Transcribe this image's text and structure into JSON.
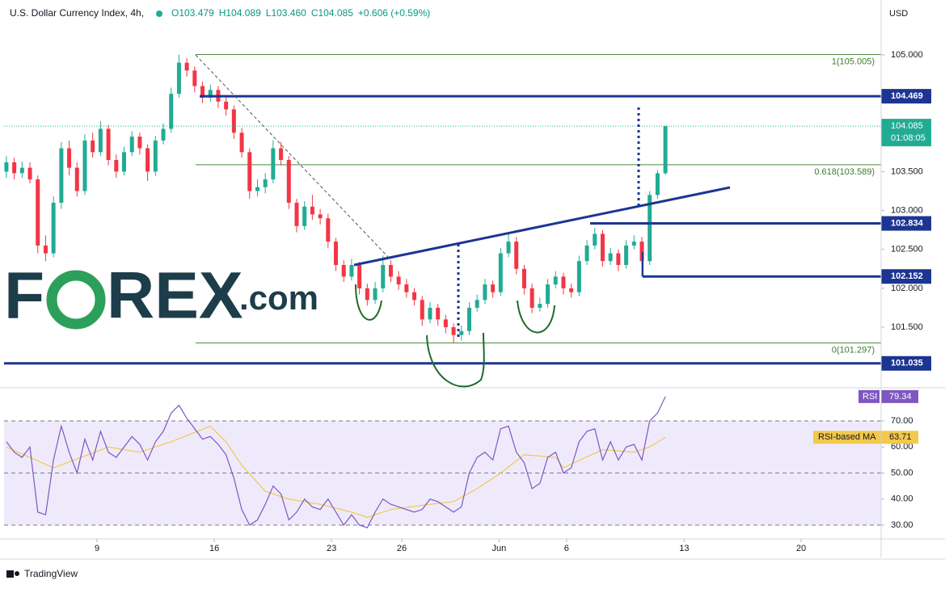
{
  "header": {
    "symbol": "U.S. Dollar Currency Index, 4h,",
    "ohlc": [
      "O103.479",
      "H104.089",
      "L103.460",
      "C104.085"
    ],
    "change": "+0.606 (+0.59%)",
    "currency": "USD",
    "countdown": "01:08:05"
  },
  "watermark": [
    "F",
    "REX",
    ".com"
  ],
  "footer": "TradingView",
  "chart_data": [
    {
      "type": "candlestick",
      "up_color": "#22ab94",
      "down_color": "#f23645",
      "level_color": "#1c3593",
      "ylim": [
        100.742,
        105.706
      ],
      "xlim": [
        -0.3,
        111.5
      ],
      "yticks": [
        {
          "value": 105,
          "label": "105.000"
        },
        {
          "value": 103.5,
          "label": "103.500"
        },
        {
          "value": 103,
          "label": "103.000"
        },
        {
          "value": 102.5,
          "label": "102.500"
        },
        {
          "value": 102,
          "label": "102.000"
        },
        {
          "value": 101.5,
          "label": "101.500"
        }
      ],
      "xticks": [
        {
          "value": 11.55,
          "label": "9"
        },
        {
          "value": 26.5,
          "label": "16"
        },
        {
          "value": 41.44,
          "label": "23"
        },
        {
          "value": 50.4,
          "label": "26"
        },
        {
          "value": 62.8,
          "label": "Jun"
        },
        {
          "value": 71.4,
          "label": "6"
        },
        {
          "value": 86.4,
          "label": "13"
        },
        {
          "value": 101.3,
          "label": "20"
        }
      ],
      "levels": [
        104.469,
        102.834,
        102.152,
        101.035
      ],
      "fib": [
        {
          "value": 105.005,
          "label": "1(105.005)"
        },
        {
          "value": 103.589,
          "label": "0.618(103.589)"
        },
        {
          "value": 101.297,
          "label": "0(101.297)"
        }
      ],
      "candles": [
        [
          103.5,
          103.7,
          103.42,
          103.62
        ],
        [
          103.62,
          103.68,
          103.4,
          103.48
        ],
        [
          103.48,
          103.63,
          103.42,
          103.55
        ],
        [
          103.55,
          103.62,
          103.35,
          103.4
        ],
        [
          103.4,
          103.45,
          102.45,
          102.55
        ],
        [
          102.55,
          102.68,
          102.35,
          102.45
        ],
        [
          102.45,
          103.18,
          102.4,
          103.1
        ],
        [
          103.1,
          103.88,
          103.02,
          103.8
        ],
        [
          103.8,
          103.9,
          103.45,
          103.55
        ],
        [
          103.55,
          103.62,
          103.18,
          103.25
        ],
        [
          103.25,
          103.98,
          103.2,
          103.9
        ],
        [
          103.9,
          104.0,
          103.68,
          103.75
        ],
        [
          103.75,
          104.15,
          103.7,
          104.05
        ],
        [
          104.05,
          104.1,
          103.58,
          103.65
        ],
        [
          103.65,
          103.72,
          103.42,
          103.5
        ],
        [
          103.5,
          103.82,
          103.45,
          103.75
        ],
        [
          103.75,
          104.02,
          103.7,
          103.95
        ],
        [
          103.95,
          104.0,
          103.72,
          103.8
        ],
        [
          103.8,
          103.85,
          103.38,
          103.5
        ],
        [
          103.5,
          103.96,
          103.45,
          103.9
        ],
        [
          103.9,
          104.12,
          103.85,
          104.05
        ],
        [
          104.05,
          104.58,
          104.0,
          104.5
        ],
        [
          104.5,
          105.005,
          104.45,
          104.9
        ],
        [
          104.9,
          104.96,
          104.72,
          104.8
        ],
        [
          104.8,
          104.85,
          104.52,
          104.6
        ],
        [
          104.6,
          104.66,
          104.38,
          104.45
        ],
        [
          104.45,
          104.62,
          104.4,
          104.55
        ],
        [
          104.55,
          104.6,
          104.32,
          104.4
        ],
        [
          104.4,
          104.48,
          104.22,
          104.3
        ],
        [
          104.3,
          104.35,
          103.92,
          104.0
        ],
        [
          104.0,
          104.06,
          103.68,
          103.75
        ],
        [
          103.75,
          103.8,
          103.15,
          103.25
        ],
        [
          103.25,
          103.4,
          103.18,
          103.3
        ],
        [
          103.3,
          103.48,
          103.22,
          103.4
        ],
        [
          103.4,
          103.9,
          103.35,
          103.8
        ],
        [
          103.8,
          103.88,
          103.58,
          103.65
        ],
        [
          103.65,
          103.7,
          103.02,
          103.1
        ],
        [
          103.1,
          103.15,
          102.72,
          102.8
        ],
        [
          102.8,
          103.12,
          102.75,
          103.05
        ],
        [
          103.05,
          103.2,
          102.88,
          102.95
        ],
        [
          102.95,
          103.02,
          102.82,
          102.9
        ],
        [
          102.9,
          102.96,
          102.52,
          102.6
        ],
        [
          102.6,
          102.65,
          102.22,
          102.3
        ],
        [
          102.3,
          102.36,
          102.08,
          102.15
        ],
        [
          102.15,
          102.38,
          102.1,
          102.3
        ],
        [
          102.3,
          102.34,
          101.92,
          102.0
        ],
        [
          102.0,
          102.06,
          101.78,
          101.85
        ],
        [
          101.85,
          102.08,
          101.8,
          102.0
        ],
        [
          102.0,
          102.42,
          101.95,
          102.3
        ],
        [
          102.3,
          102.36,
          102.08,
          102.15
        ],
        [
          102.15,
          102.22,
          101.98,
          102.05
        ],
        [
          102.05,
          102.12,
          101.88,
          101.95
        ],
        [
          101.95,
          102.0,
          101.78,
          101.85
        ],
        [
          101.85,
          101.9,
          101.52,
          101.6
        ],
        [
          101.6,
          101.82,
          101.55,
          101.75
        ],
        [
          101.75,
          101.8,
          101.52,
          101.6
        ],
        [
          101.6,
          101.66,
          101.42,
          101.5
        ],
        [
          101.5,
          101.55,
          101.297,
          101.4
        ],
        [
          101.4,
          101.52,
          101.33,
          101.45
        ],
        [
          101.45,
          101.82,
          101.4,
          101.75
        ],
        [
          101.75,
          101.92,
          101.7,
          101.85
        ],
        [
          101.85,
          102.12,
          101.8,
          102.05
        ],
        [
          102.05,
          102.1,
          101.88,
          101.95
        ],
        [
          101.95,
          102.52,
          101.9,
          102.45
        ],
        [
          102.45,
          102.72,
          102.4,
          102.6
        ],
        [
          102.6,
          102.66,
          102.18,
          102.25
        ],
        [
          102.25,
          102.3,
          101.92,
          102.0
        ],
        [
          102.0,
          102.06,
          101.68,
          101.75
        ],
        [
          101.75,
          101.88,
          101.7,
          101.8
        ],
        [
          101.8,
          102.12,
          101.75,
          102.05
        ],
        [
          102.05,
          102.22,
          102.0,
          102.15
        ],
        [
          102.15,
          102.2,
          101.92,
          102.0
        ],
        [
          102.0,
          102.06,
          101.88,
          101.95
        ],
        [
          101.95,
          102.42,
          101.9,
          102.35
        ],
        [
          102.35,
          102.62,
          102.3,
          102.55
        ],
        [
          102.55,
          102.78,
          102.5,
          102.7
        ],
        [
          102.7,
          102.75,
          102.28,
          102.35
        ],
        [
          102.35,
          102.52,
          102.3,
          102.45
        ],
        [
          102.45,
          102.5,
          102.22,
          102.3
        ],
        [
          102.3,
          102.62,
          102.25,
          102.55
        ],
        [
          102.55,
          102.68,
          102.5,
          102.6
        ],
        [
          102.6,
          102.66,
          102.15,
          102.35
        ],
        [
          102.35,
          103.25,
          102.3,
          103.2
        ],
        [
          103.2,
          103.52,
          103.15,
          103.479
        ],
        [
          103.479,
          104.089,
          103.46,
          104.085
        ]
      ]
    },
    {
      "type": "line",
      "name": "RSI",
      "color": "#7e57c2",
      "band_color": "#efeafb",
      "ylim": [
        25.35,
        82.09
      ],
      "xlim": [
        -0.3,
        111.5
      ],
      "levels": [
        70,
        50,
        30
      ],
      "yticks": [
        {
          "value": 70,
          "label": "70.00"
        },
        {
          "value": 60,
          "label": "60.00"
        },
        {
          "value": 50,
          "label": "50.00"
        },
        {
          "value": 40,
          "label": "40.00"
        },
        {
          "value": 30,
          "label": "30.00"
        }
      ],
      "values": [
        62,
        58,
        56,
        60,
        35,
        34,
        55,
        68,
        58,
        50,
        63,
        55,
        66,
        58,
        56,
        60,
        64,
        61,
        55,
        62,
        66,
        73,
        76,
        71,
        67,
        63,
        64,
        61,
        57,
        48,
        36,
        30,
        32,
        38,
        45,
        42,
        32,
        35,
        40,
        37,
        36,
        40,
        35,
        30,
        34,
        30,
        29,
        35,
        40,
        38,
        37,
        36,
        35,
        36,
        40,
        39,
        37,
        35,
        37,
        50,
        56,
        58,
        55,
        67,
        68,
        58,
        54,
        44,
        46,
        56,
        58,
        50,
        52,
        62,
        66,
        67,
        55,
        62,
        55,
        60,
        61,
        55,
        70,
        73,
        79.34
      ],
      "ma": {
        "name": "RSI-based MA",
        "color": "#f2c94c",
        "x": [
          0,
          6,
          13,
          17,
          21,
          26,
          28,
          30,
          33,
          36,
          40,
          44,
          46,
          49,
          54,
          57,
          60,
          63,
          66,
          70,
          71,
          76,
          80,
          82,
          84
        ],
        "values": [
          60,
          52,
          60,
          58,
          62,
          68,
          62,
          53,
          43,
          40,
          38,
          35,
          33,
          36,
          38,
          39,
          44,
          50,
          57,
          56,
          52,
          59,
          58,
          60,
          63.71
        ]
      }
    }
  ]
}
